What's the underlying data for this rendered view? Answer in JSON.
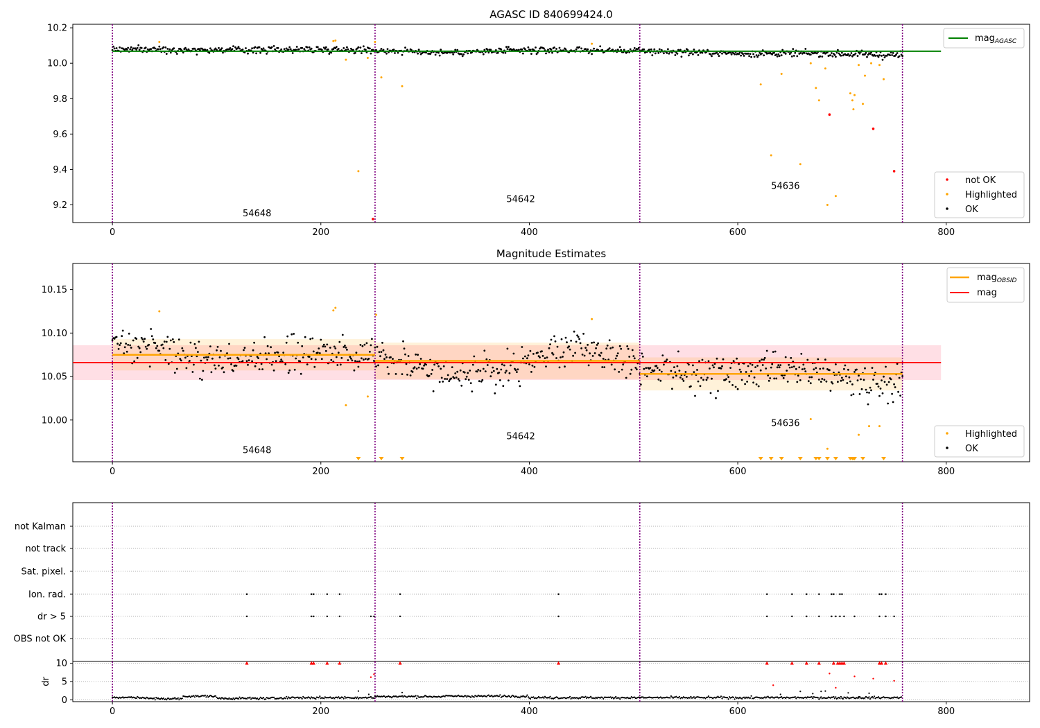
{
  "chart_data": [
    {
      "type": "scatter",
      "title": "AGASC ID 840699424.0",
      "xlabel": "",
      "ylabel": "",
      "xlim": [
        -38,
        880
      ],
      "ylim": [
        9.1,
        10.22
      ],
      "x_ticks": [
        0,
        200,
        400,
        600,
        800
      ],
      "y_ticks": [
        9.2,
        9.4,
        9.6,
        9.8,
        10.0,
        10.2
      ],
      "obsid_boundaries": [
        0,
        252,
        506,
        758
      ],
      "obsid_labels": [
        {
          "text": "54648",
          "x": 125,
          "y": 9.135
        },
        {
          "text": "54642",
          "x": 378,
          "y": 9.215
        },
        {
          "text": "54636",
          "x": 632,
          "y": 9.29
        }
      ],
      "lines": [
        {
          "name": "magAGASC",
          "color": "#008000",
          "value": 10.068,
          "x": [
            0,
            795
          ]
        }
      ],
      "ok_baseline": [
        [
          0,
          10.08
        ],
        [
          120,
          10.075
        ],
        [
          220,
          10.08
        ],
        [
          320,
          10.06
        ],
        [
          420,
          10.075
        ],
        [
          506,
          10.07
        ],
        [
          600,
          10.055
        ],
        [
          680,
          10.055
        ],
        [
          758,
          10.045
        ]
      ],
      "highlighted": [
        [
          45,
          10.12
        ],
        [
          212,
          10.125
        ],
        [
          214,
          10.128
        ],
        [
          224,
          10.02
        ],
        [
          236,
          9.39
        ],
        [
          245,
          10.03
        ],
        [
          252,
          10.12
        ],
        [
          258,
          9.92
        ],
        [
          278,
          9.87
        ],
        [
          460,
          10.11
        ],
        [
          622,
          9.88
        ],
        [
          632,
          9.48
        ],
        [
          642,
          9.94
        ],
        [
          660,
          9.43
        ],
        [
          670,
          10.0
        ],
        [
          675,
          9.86
        ],
        [
          678,
          9.79
        ],
        [
          684,
          9.97
        ],
        [
          686,
          9.2
        ],
        [
          694,
          9.25
        ],
        [
          708,
          9.83
        ],
        [
          710,
          9.79
        ],
        [
          711,
          9.74
        ],
        [
          712,
          9.82
        ],
        [
          716,
          9.99
        ],
        [
          720,
          9.77
        ],
        [
          722,
          9.93
        ],
        [
          728,
          10.0
        ],
        [
          736,
          9.99
        ],
        [
          740,
          9.91
        ]
      ],
      "not_ok": [
        [
          250,
          9.12
        ],
        [
          688,
          9.71
        ],
        [
          730,
          9.63
        ],
        [
          750,
          9.39
        ]
      ],
      "legend": [
        {
          "label": "not OK",
          "color": "#ff0000"
        },
        {
          "label": "Highlighted",
          "color": "#ffa500"
        },
        {
          "label": "OK",
          "color": "#000000"
        }
      ],
      "line_legend": {
        "text": "mag",
        "sub": "AGASC",
        "color": "#008000"
      }
    },
    {
      "type": "scatter",
      "title": "Magnitude Estimates",
      "xlabel": "",
      "ylabel": "",
      "xlim": [
        -38,
        880
      ],
      "ylim": [
        9.952,
        10.18
      ],
      "x_ticks": [
        0,
        200,
        400,
        600,
        800
      ],
      "y_ticks": [
        10.0,
        10.05,
        10.1,
        10.15
      ],
      "obsid_boundaries": [
        0,
        252,
        506,
        758
      ],
      "obsid_labels": [
        {
          "text": "54648",
          "x": 125,
          "y": 9.962
        },
        {
          "text": "54642",
          "x": 378,
          "y": 9.978
        },
        {
          "text": "54636",
          "x": 632,
          "y": 9.993
        }
      ],
      "mag": {
        "value": 10.066,
        "band": [
          10.046,
          10.086
        ],
        "x": [
          -38,
          795
        ],
        "color": "#ff0000",
        "band_color": "#ffc0cb"
      },
      "mag_obsid": [
        {
          "x": [
            0,
            252
          ],
          "value": 10.075,
          "band": [
            10.057,
            10.093
          ]
        },
        {
          "x": [
            252,
            506
          ],
          "value": 10.068,
          "band": [
            10.047,
            10.089
          ]
        },
        {
          "x": [
            506,
            758
          ],
          "value": 10.053,
          "band": [
            10.034,
            10.072
          ]
        }
      ],
      "ok_centers": [
        [
          0,
          10.085
        ],
        [
          30,
          10.09
        ],
        [
          80,
          10.07
        ],
        [
          130,
          10.07
        ],
        [
          180,
          10.075
        ],
        [
          252,
          10.08
        ],
        [
          300,
          10.06
        ],
        [
          350,
          10.05
        ],
        [
          400,
          10.065
        ],
        [
          440,
          10.085
        ],
        [
          480,
          10.075
        ],
        [
          506,
          10.065
        ],
        [
          560,
          10.05
        ],
        [
          620,
          10.055
        ],
        [
          680,
          10.055
        ],
        [
          720,
          10.045
        ],
        [
          758,
          10.045
        ]
      ],
      "highlighted": [
        [
          45,
          10.125
        ],
        [
          212,
          10.126
        ],
        [
          214,
          10.129
        ],
        [
          224,
          10.017
        ],
        [
          245,
          10.027
        ],
        [
          253,
          10.121
        ],
        [
          460,
          10.116
        ],
        [
          670,
          10.001
        ],
        [
          686,
          9.967
        ],
        [
          716,
          9.983
        ],
        [
          726,
          9.993
        ],
        [
          736,
          9.993
        ]
      ],
      "offscale_markers_x": [
        236,
        258,
        278,
        622,
        632,
        642,
        660,
        675,
        678,
        686,
        694,
        708,
        710,
        711,
        712,
        720,
        740
      ],
      "legend": [
        {
          "label": "Highlighted",
          "color": "#ffa500"
        },
        {
          "label": "OK",
          "color": "#000000"
        }
      ],
      "line_legend": [
        {
          "text": "mag",
          "sub": "OBSID",
          "color": "#ffa500"
        },
        {
          "text": "mag",
          "sub": "",
          "color": "#ff0000"
        }
      ]
    },
    {
      "type": "scatter",
      "title": "",
      "xlabel": "",
      "ylabel": "",
      "xlim": [
        -38,
        880
      ],
      "x_ticks": [
        0,
        200,
        400,
        600,
        800
      ],
      "obsid_boundaries": [
        0,
        252,
        506,
        758
      ],
      "flag_rows": [
        "not Kalman",
        "not track",
        "Sat. pixel.",
        "Ion. rad.",
        "dr > 5",
        "OBS not OK"
      ],
      "flag_points": {
        "Ion. rad.": [
          129,
          191,
          193,
          206,
          218,
          276,
          428,
          628,
          652,
          666,
          678,
          690,
          692,
          698,
          700,
          736,
          738,
          742
        ],
        "dr > 5": [
          129,
          191,
          193,
          206,
          218,
          248,
          251,
          276,
          428,
          628,
          652,
          666,
          678,
          690,
          694,
          698,
          702,
          712,
          736,
          742,
          750
        ]
      }
    },
    {
      "type": "scatter",
      "title": "",
      "xlabel": "",
      "ylabel": "dr",
      "xlim": [
        -38,
        880
      ],
      "ylim": [
        -0.5,
        10.5
      ],
      "x_ticks": [
        0,
        200,
        400,
        600,
        800
      ],
      "y_ticks": [
        0,
        5,
        10
      ],
      "obsid_boundaries": [
        0,
        252,
        506,
        758
      ],
      "baseline_segments": [
        {
          "x": [
            0,
            35
          ],
          "base": 0.6
        },
        {
          "x": [
            35,
            68
          ],
          "base": 0.3
        },
        {
          "x": [
            68,
            100
          ],
          "base": 1.0
        },
        {
          "x": [
            100,
            160
          ],
          "base": 0.4
        },
        {
          "x": [
            160,
            252
          ],
          "base": 0.6
        },
        {
          "x": [
            252,
            320
          ],
          "base": 0.9
        },
        {
          "x": [
            320,
            400
          ],
          "base": 1.0
        },
        {
          "x": [
            400,
            506
          ],
          "base": 0.6
        },
        {
          "x": [
            506,
            620
          ],
          "base": 0.6
        },
        {
          "x": [
            620,
            758
          ],
          "base": 0.6
        }
      ],
      "clipped_red_x": [
        129,
        191,
        193,
        206,
        218,
        276,
        428,
        628,
        652,
        666,
        678,
        692,
        696,
        698,
        700,
        702,
        736,
        738,
        742
      ],
      "red_points": [
        [
          248,
          6.2
        ],
        [
          251,
          7.0
        ],
        [
          634,
          4.0
        ],
        [
          688,
          7.2
        ],
        [
          694,
          3.3
        ],
        [
          712,
          6.4
        ],
        [
          730,
          5.8
        ],
        [
          750,
          5.2
        ]
      ],
      "black_points": [
        [
          236,
          2.4
        ],
        [
          246,
          1.5
        ],
        [
          278,
          2.0
        ],
        [
          641,
          1.5
        ],
        [
          660,
          2.3
        ],
        [
          672,
          1.7
        ],
        [
          680,
          2.3
        ],
        [
          684,
          2.4
        ],
        [
          706,
          1.9
        ],
        [
          716,
          0.8
        ],
        [
          726,
          1.8
        ]
      ]
    }
  ]
}
